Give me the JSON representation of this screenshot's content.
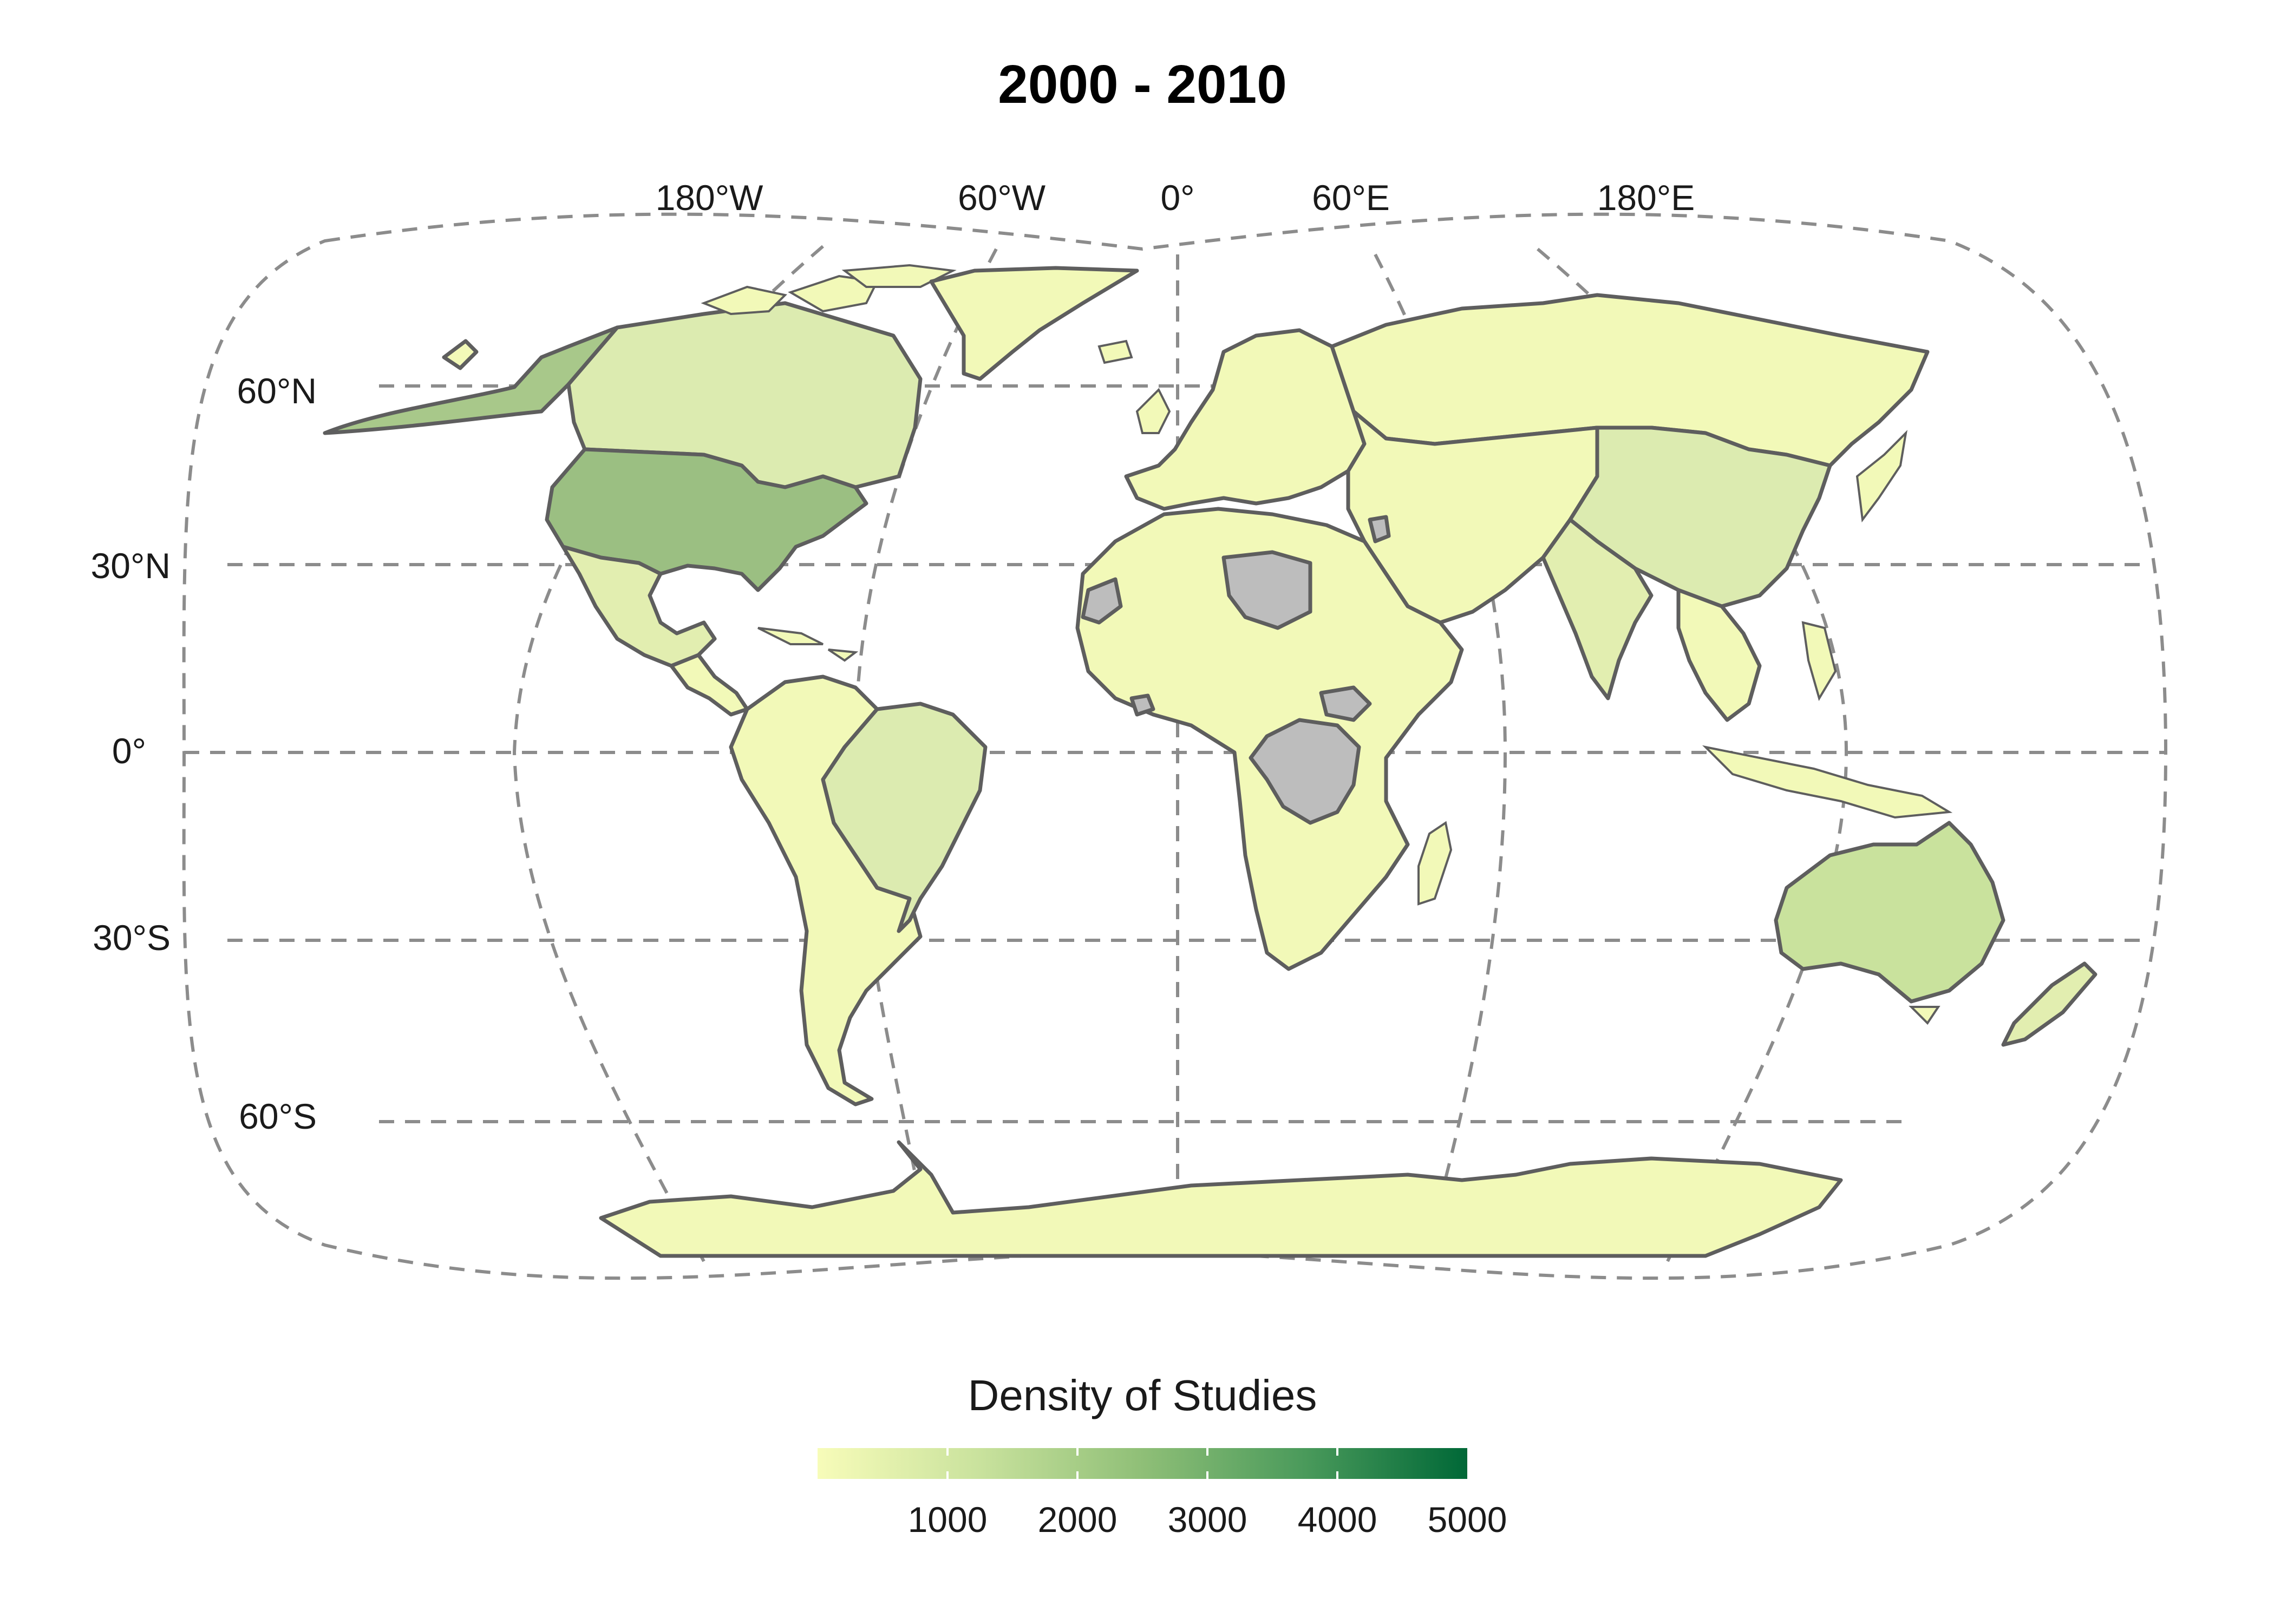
{
  "title": "2000 - 2010",
  "longitude_labels": [
    "180°W",
    "60°W",
    "0°",
    "60°E",
    "180°E"
  ],
  "latitude_labels": [
    "60°N",
    "30°N",
    "0°",
    "30°S",
    "60°S"
  ],
  "legend": {
    "title": "Density of Studies",
    "ticks": [
      "1000",
      "2000",
      "3000",
      "4000",
      "5000"
    ],
    "range": [
      0,
      5000
    ],
    "color_low": "#f7fcb9",
    "color_high": "#006837"
  },
  "colors": {
    "no_data": "#bdbdbd",
    "border": "#5e5e5e",
    "graticule": "#8c8c8c",
    "ocean": "#ffffff"
  },
  "projection": "Robinson (Pacific-extended)",
  "chart_data": {
    "type": "choropleth",
    "title": "2000 - 2010",
    "legend_title": "Density of Studies",
    "scale_range": [
      0,
      5000
    ],
    "regions": [
      {
        "name": "United States",
        "value": 2700
      },
      {
        "name": "Alaska",
        "value": 2300
      },
      {
        "name": "Canada",
        "value": 1200
      },
      {
        "name": "Greenland",
        "value": 50
      },
      {
        "name": "Mexico",
        "value": 700
      },
      {
        "name": "Central America",
        "value": 200
      },
      {
        "name": "Brazil",
        "value": 1000
      },
      {
        "name": "South America (other)",
        "value": 250
      },
      {
        "name": "Europe",
        "value": 400
      },
      {
        "name": "Russia",
        "value": 150
      },
      {
        "name": "China",
        "value": 900
      },
      {
        "name": "India",
        "value": 700
      },
      {
        "name": "Southeast Asia",
        "value": 250
      },
      {
        "name": "Middle East",
        "value": 200
      },
      {
        "name": "Africa (most)",
        "value": 200
      },
      {
        "name": "Libya",
        "value": null
      },
      {
        "name": "Western Sahara",
        "value": null
      },
      {
        "name": "DR Congo",
        "value": null
      },
      {
        "name": "South Sudan",
        "value": null
      },
      {
        "name": "Australia",
        "value": 1500
      },
      {
        "name": "New Zealand",
        "value": 500
      },
      {
        "name": "Antarctica",
        "value": 50
      }
    ]
  }
}
